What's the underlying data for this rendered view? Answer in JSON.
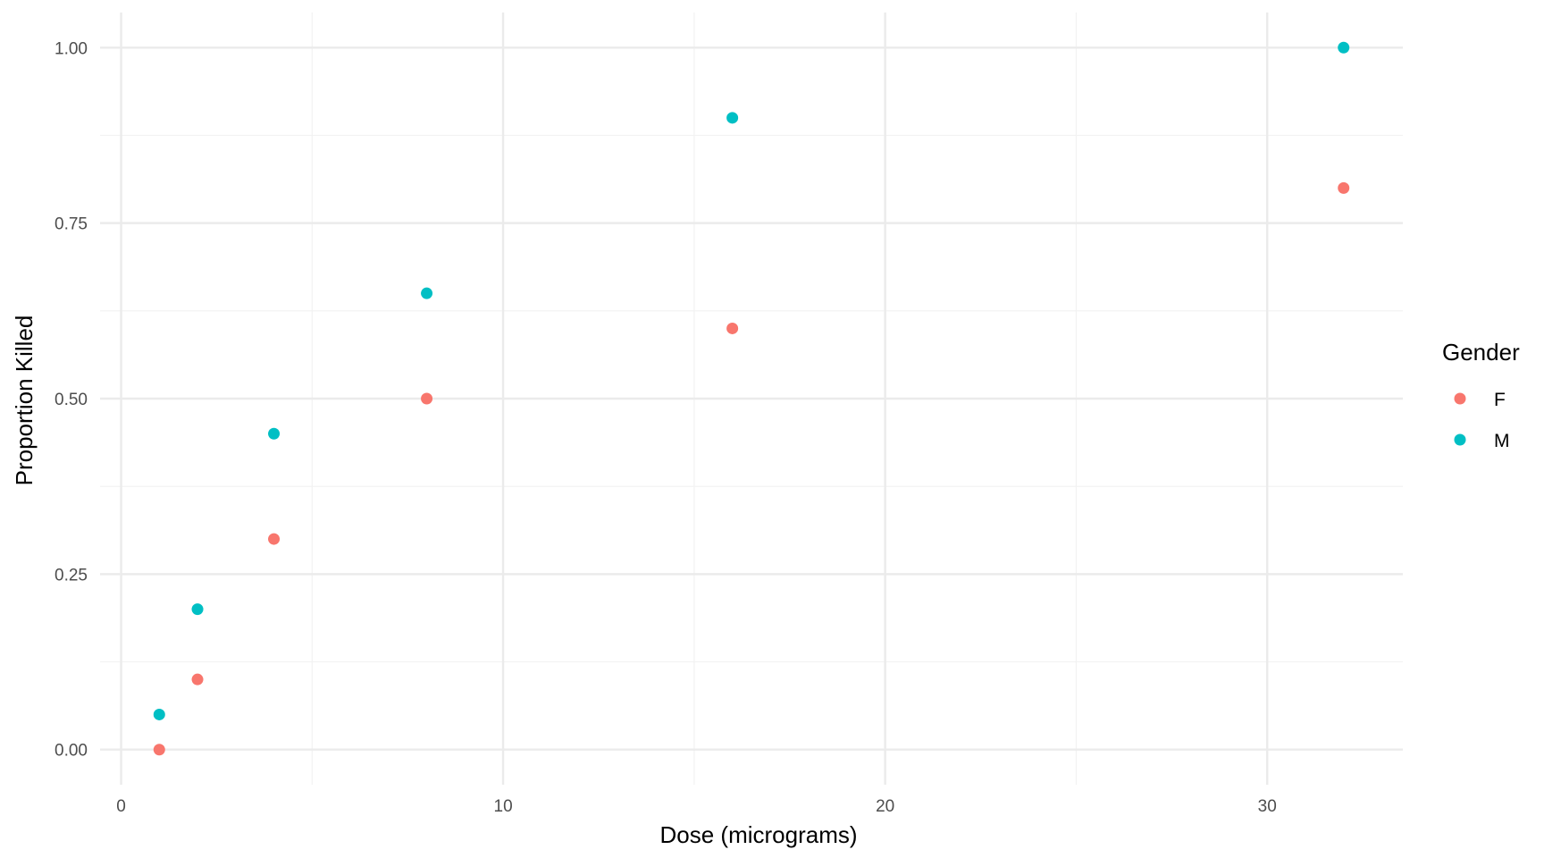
{
  "chart_data": {
    "type": "scatter",
    "title": "",
    "xlabel": "Dose (micrograms)",
    "ylabel": "Proportion Killed",
    "xlim": [
      -0.55,
      33.55
    ],
    "ylim": [
      -0.05,
      1.05
    ],
    "x_major_ticks": [
      0,
      10,
      20,
      30
    ],
    "x_tick_labels": [
      "0",
      "10",
      "20",
      "30"
    ],
    "x_minor_ticks": [
      5,
      15,
      25
    ],
    "y_major_ticks": [
      0,
      0.25,
      0.5,
      0.75,
      1.0
    ],
    "y_tick_labels": [
      "0.00",
      "0.25",
      "0.50",
      "0.75",
      "1.00"
    ],
    "y_minor_ticks": [
      0.125,
      0.375,
      0.625,
      0.875
    ],
    "grid": true,
    "legend": {
      "title": "Gender",
      "position": "right"
    },
    "series": [
      {
        "name": "F",
        "color": "#F8766D",
        "x": [
          1,
          2,
          4,
          8,
          16,
          32
        ],
        "y": [
          0.0,
          0.1,
          0.3,
          0.5,
          0.6,
          0.8
        ]
      },
      {
        "name": "M",
        "color": "#00BFC4",
        "x": [
          1,
          2,
          4,
          8,
          16,
          32
        ],
        "y": [
          0.05,
          0.2,
          0.45,
          0.65,
          0.9,
          1.0
        ]
      }
    ]
  }
}
